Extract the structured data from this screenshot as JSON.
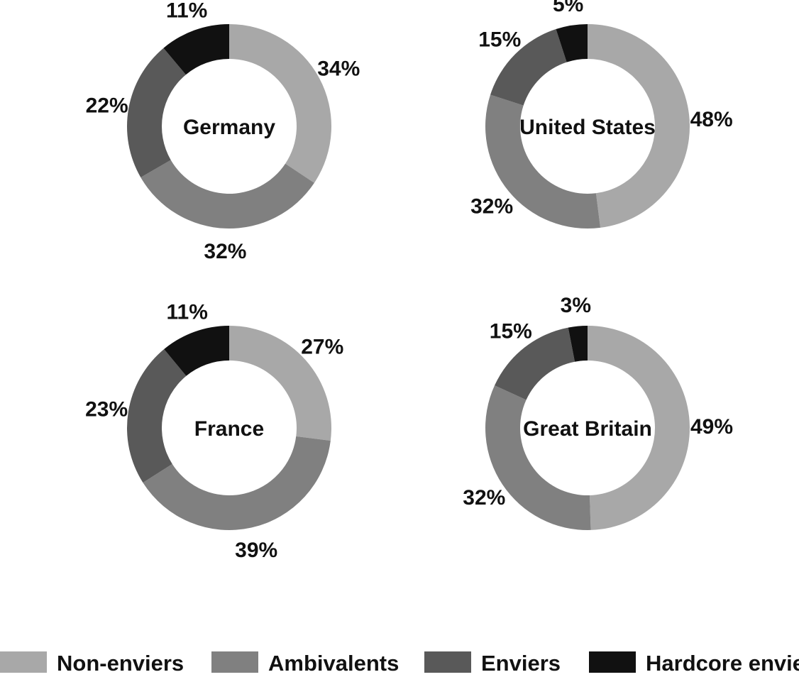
{
  "legend": {
    "entries": [
      {
        "label": "Non-enviers",
        "color": "#a8a8a8"
      },
      {
        "label": "Ambivalents",
        "color": "#808080"
      },
      {
        "label": "Enviers",
        "color": "#595959"
      },
      {
        "label": "Hardcore enviers",
        "color": "#111111"
      }
    ]
  },
  "chart_data": [
    {
      "type": "pie",
      "title": "Germany",
      "categories": [
        "Non-enviers",
        "Ambivalents",
        "Enviers",
        "Hardcore enviers"
      ],
      "values": [
        34,
        32,
        22,
        11
      ],
      "labels": [
        "34%",
        "32%",
        "22%",
        "11%"
      ]
    },
    {
      "type": "pie",
      "title": "United States",
      "categories": [
        "Non-enviers",
        "Ambivalents",
        "Enviers",
        "Hardcore enviers"
      ],
      "values": [
        48,
        32,
        15,
        5
      ],
      "labels": [
        "48%",
        "32%",
        "15%",
        "5%"
      ]
    },
    {
      "type": "pie",
      "title": "France",
      "categories": [
        "Non-enviers",
        "Ambivalents",
        "Enviers",
        "Hardcore enviers"
      ],
      "values": [
        27,
        39,
        23,
        11
      ],
      "labels": [
        "27%",
        "39%",
        "23%",
        "11%"
      ]
    },
    {
      "type": "pie",
      "title": "Great Britain",
      "categories": [
        "Non-enviers",
        "Ambivalents",
        "Enviers",
        "Hardcore enviers"
      ],
      "values": [
        49,
        32,
        15,
        3
      ],
      "labels": [
        "49%",
        "32%",
        "15%",
        "3%"
      ]
    }
  ]
}
